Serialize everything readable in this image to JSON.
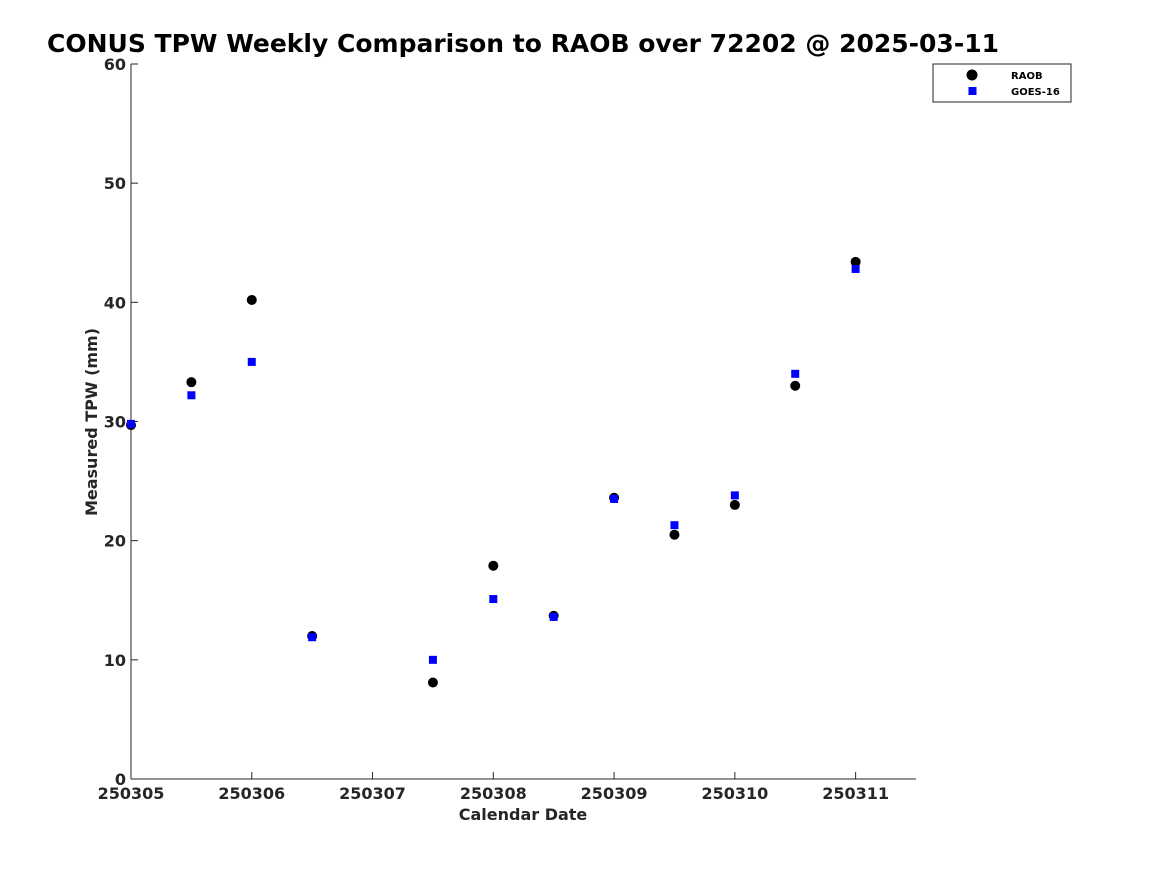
{
  "chart_data": {
    "type": "scatter",
    "title": "CONUS TPW Weekly Comparison to RAOB over 72202 @ 2025-03-11",
    "xlabel": "Calendar Date",
    "ylabel": "Measured TPW (mm)",
    "xlim": [
      250305,
      250311.5
    ],
    "ylim": [
      0,
      60
    ],
    "xticks": [
      250305,
      250306,
      250307,
      250308,
      250309,
      250310,
      250311
    ],
    "xtick_labels": [
      "250305",
      "250306",
      "250307",
      "250308",
      "250309",
      "250310",
      "250311"
    ],
    "yticks": [
      0,
      10,
      20,
      30,
      40,
      50,
      60
    ],
    "ytick_labels": [
      "0",
      "10",
      "20",
      "30",
      "40",
      "50",
      "60"
    ],
    "grid": false,
    "legend_position": "top-right",
    "series": [
      {
        "name": "RAOB",
        "marker": "circle",
        "color": "#000000",
        "x": [
          250305,
          250305.5,
          250306,
          250306.5,
          250307.5,
          250308,
          250308.5,
          250309,
          250309.5,
          250310,
          250310.5,
          250311
        ],
        "y": [
          29.7,
          33.3,
          40.2,
          12.0,
          8.1,
          17.9,
          13.7,
          23.6,
          20.5,
          23.0,
          33.0,
          43.4
        ]
      },
      {
        "name": "GOES-16",
        "marker": "square",
        "color": "#0000ff",
        "x": [
          250305,
          250305.5,
          250306,
          250306.5,
          250307.5,
          250308,
          250308.5,
          250309,
          250309.5,
          250310,
          250310.5,
          250311
        ],
        "y": [
          29.8,
          32.2,
          35.0,
          11.9,
          10.0,
          15.1,
          13.6,
          23.5,
          21.3,
          23.8,
          34.0,
          42.8
        ]
      }
    ]
  }
}
